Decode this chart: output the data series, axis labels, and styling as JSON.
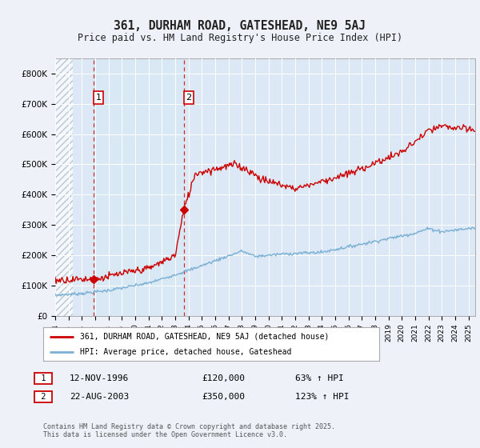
{
  "title": "361, DURHAM ROAD, GATESHEAD, NE9 5AJ",
  "subtitle": "Price paid vs. HM Land Registry's House Price Index (HPI)",
  "background_color": "#eef2f8",
  "plot_background": "#dce8f5",
  "hatch_color": "#b0bfce",
  "ylim": [
    0,
    850000
  ],
  "yticks": [
    0,
    100000,
    200000,
    300000,
    400000,
    500000,
    600000,
    700000,
    800000
  ],
  "ytick_labels": [
    "£0",
    "£100K",
    "£200K",
    "£300K",
    "£400K",
    "£500K",
    "£600K",
    "£700K",
    "£800K"
  ],
  "year_start": 1994,
  "year_end": 2025,
  "purchase1_year": 1996.87,
  "purchase1_price": 120000,
  "purchase1_label": "1",
  "purchase1_date": "12-NOV-1996",
  "purchase1_pct": "63% ↑ HPI",
  "purchase2_year": 2003.65,
  "purchase2_price": 350000,
  "purchase2_label": "2",
  "purchase2_date": "22-AUG-2003",
  "purchase2_pct": "123% ↑ HPI",
  "legend_label_red": "361, DURHAM ROAD, GATESHEAD, NE9 5AJ (detached house)",
  "legend_label_blue": "HPI: Average price, detached house, Gateshead",
  "footer": "Contains HM Land Registry data © Crown copyright and database right 2025.\nThis data is licensed under the Open Government Licence v3.0.",
  "red_color": "#cc0000",
  "blue_color": "#7ab0d4",
  "shade_color": "#d8e8f4"
}
